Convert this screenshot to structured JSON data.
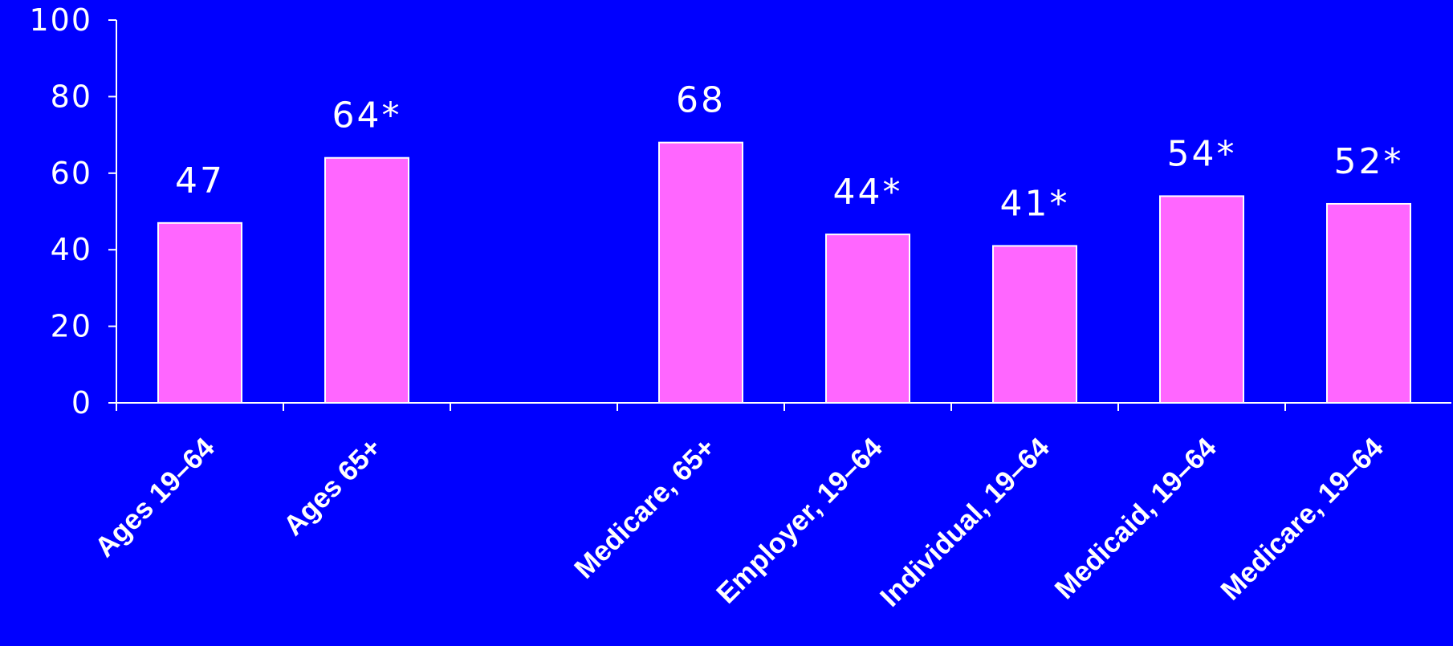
{
  "chart_data": {
    "type": "bar",
    "categories": [
      "Ages 19–64",
      "Ages 65+",
      "",
      "Medicare, 65+",
      "Employer, 19–64",
      "Individual, 19–64",
      "Medicaid, 19–64",
      "Medicare, 19–64"
    ],
    "values": [
      47,
      64,
      null,
      68,
      44,
      41,
      54,
      52
    ],
    "data_labels": [
      "47",
      "64*",
      "",
      "68",
      "44*",
      "41*",
      "54*",
      "52*"
    ],
    "y_ticks": [
      "0",
      "20",
      "40",
      "60",
      "80",
      "100"
    ],
    "ylim": [
      0,
      100
    ],
    "title": "",
    "xlabel": "",
    "ylabel": "",
    "grid": false,
    "legend": "none"
  },
  "colors": {
    "background": "#0000FF",
    "bar_fill": "#FF66FF",
    "bar_stroke": "#FFFFFF",
    "text": "#FFFFFF"
  }
}
